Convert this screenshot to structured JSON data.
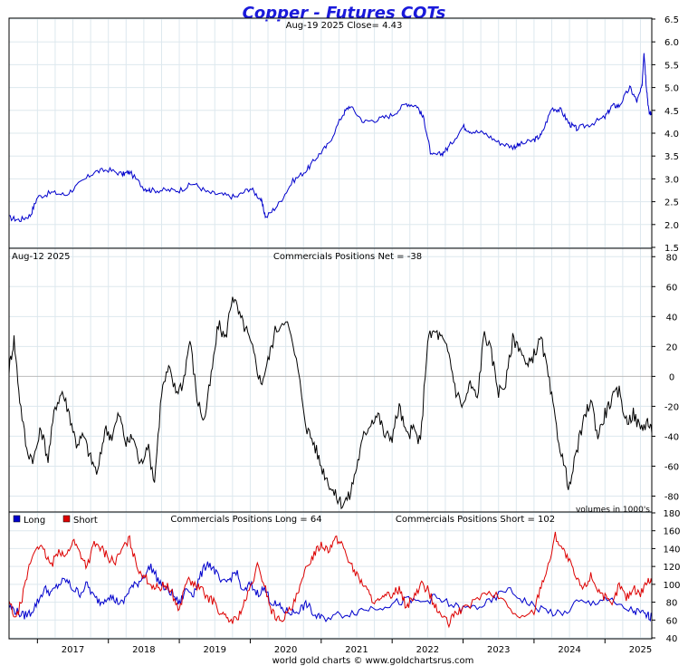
{
  "title": "Copper - Futures COTs",
  "credit": "world gold charts © www.goldchartsrus.com",
  "colors": {
    "price": "#0000cc",
    "net": "#000000",
    "long": "#0000cc",
    "short": "#dd0000",
    "grid": "#dde8ee",
    "frame": "#000000",
    "title": "#1a1adb"
  },
  "x_axis": {
    "labels": [
      "2017",
      "2018",
      "2019",
      "2020",
      "2021",
      "2022",
      "2023",
      "2024",
      "2025"
    ],
    "range": [
      2016.6,
      2025.66
    ]
  },
  "chart_data": [
    {
      "type": "line",
      "header_left": "",
      "header_center": "Aug-19  2025   Close= 4.43",
      "ylim": [
        1.5,
        6.5
      ],
      "yticks": [
        6.5,
        6.0,
        5.5,
        5.0,
        4.5,
        4.0,
        3.5,
        3.0,
        2.5,
        2.0,
        1.5
      ],
      "series": [
        {
          "x": [
            2016.6,
            2016.75,
            2016.9,
            2017.0,
            2017.2,
            2017.4,
            2017.6,
            2017.8,
            2018.0,
            2018.2,
            2018.3,
            2018.5,
            2018.6,
            2018.8,
            2019.0,
            2019.2,
            2019.4,
            2019.6,
            2019.8,
            2020.0,
            2020.15,
            2020.22,
            2020.4,
            2020.6,
            2020.8,
            2020.95,
            2021.1,
            2021.3,
            2021.4,
            2021.6,
            2021.8,
            2022.0,
            2022.2,
            2022.35,
            2022.45,
            2022.55,
            2022.7,
            2022.8,
            2023.0,
            2023.1,
            2023.3,
            2023.5,
            2023.7,
            2023.8,
            2024.0,
            2024.1,
            2024.25,
            2024.38,
            2024.5,
            2024.6,
            2024.8,
            2025.0,
            2025.1,
            2025.2,
            2025.35,
            2025.45,
            2025.52,
            2025.55,
            2025.58,
            2025.62,
            2025.66
          ],
          "y": [
            2.15,
            2.1,
            2.2,
            2.6,
            2.7,
            2.65,
            2.9,
            3.15,
            3.2,
            3.1,
            3.15,
            2.8,
            2.75,
            2.75,
            2.75,
            2.9,
            2.7,
            2.65,
            2.6,
            2.8,
            2.55,
            2.15,
            2.45,
            2.95,
            3.2,
            3.5,
            3.75,
            4.4,
            4.6,
            4.25,
            4.3,
            4.4,
            4.65,
            4.6,
            4.3,
            3.5,
            3.55,
            3.7,
            4.15,
            4.05,
            4.0,
            3.8,
            3.7,
            3.75,
            3.85,
            3.95,
            4.55,
            4.5,
            4.2,
            4.1,
            4.2,
            4.35,
            4.6,
            4.6,
            5.0,
            4.7,
            5.0,
            5.8,
            5.1,
            4.45,
            4.43
          ]
        }
      ]
    },
    {
      "type": "line",
      "header_left": "Aug-12  2025",
      "header_center": "Commercials Positions Net = -38",
      "footnote": "volumes in 1000's",
      "ylim": [
        -90,
        85
      ],
      "yticks": [
        80,
        60,
        40,
        20,
        0,
        -20,
        -40,
        -60,
        -80
      ],
      "series": [
        {
          "x": [
            2016.6,
            2016.67,
            2016.75,
            2016.85,
            2016.95,
            2017.05,
            2017.15,
            2017.25,
            2017.35,
            2017.45,
            2017.55,
            2017.65,
            2017.75,
            2017.85,
            2017.95,
            2018.05,
            2018.15,
            2018.25,
            2018.35,
            2018.45,
            2018.55,
            2018.65,
            2018.75,
            2018.85,
            2018.95,
            2019.05,
            2019.15,
            2019.25,
            2019.35,
            2019.45,
            2019.55,
            2019.65,
            2019.75,
            2019.85,
            2019.95,
            2020.05,
            2020.15,
            2020.25,
            2020.35,
            2020.5,
            2020.65,
            2020.8,
            2020.9,
            2021.0,
            2021.1,
            2021.2,
            2021.3,
            2021.4,
            2021.5,
            2021.6,
            2021.7,
            2021.8,
            2021.9,
            2022.0,
            2022.1,
            2022.2,
            2022.3,
            2022.4,
            2022.5,
            2022.6,
            2022.7,
            2022.8,
            2022.9,
            2023.0,
            2023.1,
            2023.2,
            2023.3,
            2023.4,
            2023.5,
            2023.6,
            2023.7,
            2023.8,
            2023.9,
            2024.0,
            2024.1,
            2024.2,
            2024.3,
            2024.4,
            2024.5,
            2024.6,
            2024.7,
            2024.8,
            2024.9,
            2025.0,
            2025.1,
            2025.2,
            2025.3,
            2025.4,
            2025.5,
            2025.6,
            2025.66
          ],
          "y": [
            5,
            25,
            -15,
            -50,
            -55,
            -35,
            -55,
            -20,
            -10,
            -25,
            -45,
            -40,
            -55,
            -65,
            -35,
            -40,
            -25,
            -45,
            -40,
            -60,
            -45,
            -70,
            -10,
            5,
            -10,
            -5,
            25,
            -15,
            -30,
            0,
            35,
            25,
            55,
            40,
            30,
            15,
            -5,
            10,
            30,
            40,
            10,
            -35,
            -45,
            -60,
            -70,
            -80,
            -85,
            -80,
            -60,
            -40,
            -30,
            -25,
            -40,
            -40,
            -20,
            -40,
            -35,
            -45,
            25,
            30,
            25,
            15,
            -10,
            -20,
            -5,
            -15,
            30,
            15,
            -10,
            -5,
            25,
            20,
            5,
            15,
            25,
            0,
            -30,
            -55,
            -75,
            -50,
            -30,
            -15,
            -40,
            -25,
            -15,
            -10,
            -30,
            -25,
            -35,
            -30,
            -38
          ]
        }
      ]
    },
    {
      "type": "line",
      "header_left": "",
      "header_center": "Commercials Positions Long = 64",
      "header_right": "Commercials Positions Short = 102",
      "legend": [
        {
          "name": "Long",
          "color": "#0000cc"
        },
        {
          "name": "Short",
          "color": "#dd0000"
        }
      ],
      "ylim": [
        40,
        180
      ],
      "yticks": [
        180,
        160,
        140,
        120,
        100,
        80,
        60,
        40
      ],
      "series": [
        {
          "name": "Long",
          "x": [
            2016.6,
            2016.7,
            2016.8,
            2016.9,
            2017.0,
            2017.1,
            2017.2,
            2017.3,
            2017.4,
            2017.5,
            2017.6,
            2017.7,
            2017.8,
            2017.9,
            2018.0,
            2018.1,
            2018.2,
            2018.3,
            2018.4,
            2018.5,
            2018.6,
            2018.7,
            2018.8,
            2018.9,
            2019.0,
            2019.1,
            2019.2,
            2019.3,
            2019.4,
            2019.5,
            2019.6,
            2019.7,
            2019.8,
            2019.9,
            2020.0,
            2020.1,
            2020.2,
            2020.3,
            2020.4,
            2020.5,
            2020.6,
            2020.7,
            2020.8,
            2020.9,
            2021.0,
            2021.2,
            2021.4,
            2021.6,
            2021.8,
            2022.0,
            2022.2,
            2022.4,
            2022.6,
            2022.8,
            2023.0,
            2023.2,
            2023.4,
            2023.6,
            2023.8,
            2024.0,
            2024.2,
            2024.4,
            2024.6,
            2024.8,
            2025.0,
            2025.2,
            2025.4,
            2025.5,
            2025.6,
            2025.66
          ],
          "y": [
            75,
            70,
            65,
            68,
            80,
            95,
            90,
            100,
            105,
            95,
            90,
            100,
            85,
            80,
            88,
            82,
            78,
            95,
            100,
            110,
            120,
            105,
            95,
            90,
            78,
            95,
            90,
            110,
            125,
            115,
            100,
            105,
            115,
            90,
            100,
            90,
            95,
            80,
            75,
            70,
            68,
            72,
            78,
            65,
            62,
            65,
            68,
            72,
            75,
            78,
            82,
            80,
            85,
            78,
            72,
            75,
            80,
            95,
            85,
            75,
            70,
            65,
            80,
            78,
            85,
            75,
            70,
            68,
            65,
            64
          ]
        },
        {
          "name": "Short",
          "x": [
            2016.6,
            2016.7,
            2016.8,
            2016.9,
            2017.0,
            2017.1,
            2017.2,
            2017.3,
            2017.4,
            2017.5,
            2017.6,
            2017.7,
            2017.8,
            2017.9,
            2018.0,
            2018.1,
            2018.2,
            2018.3,
            2018.4,
            2018.5,
            2018.6,
            2018.7,
            2018.8,
            2018.9,
            2019.0,
            2019.1,
            2019.2,
            2019.3,
            2019.4,
            2019.5,
            2019.6,
            2019.7,
            2019.8,
            2019.9,
            2020.0,
            2020.1,
            2020.2,
            2020.3,
            2020.4,
            2020.5,
            2020.6,
            2020.7,
            2020.8,
            2020.9,
            2021.0,
            2021.1,
            2021.2,
            2021.3,
            2021.4,
            2021.5,
            2021.6,
            2021.7,
            2021.8,
            2021.9,
            2022.0,
            2022.1,
            2022.2,
            2022.3,
            2022.4,
            2022.5,
            2022.6,
            2022.7,
            2022.8,
            2022.9,
            2023.0,
            2023.2,
            2023.4,
            2023.6,
            2023.8,
            2024.0,
            2024.1,
            2024.2,
            2024.3,
            2024.4,
            2024.5,
            2024.6,
            2024.7,
            2024.8,
            2024.9,
            2025.0,
            2025.1,
            2025.2,
            2025.3,
            2025.4,
            2025.5,
            2025.6,
            2025.66
          ],
          "y": [
            80,
            60,
            90,
            125,
            145,
            135,
            120,
            140,
            130,
            150,
            135,
            120,
            145,
            140,
            130,
            125,
            140,
            150,
            120,
            110,
            100,
            95,
            100,
            90,
            70,
            105,
            100,
            95,
            85,
            80,
            65,
            60,
            60,
            75,
            95,
            120,
            100,
            70,
            60,
            65,
            75,
            95,
            120,
            135,
            145,
            140,
            150,
            145,
            125,
            110,
            100,
            85,
            80,
            85,
            90,
            95,
            75,
            85,
            100,
            95,
            75,
            65,
            55,
            70,
            70,
            85,
            90,
            80,
            60,
            70,
            100,
            120,
            155,
            140,
            125,
            105,
            95,
            110,
            95,
            85,
            75,
            100,
            85,
            95,
            90,
            105,
            102
          ]
        }
      ]
    }
  ]
}
